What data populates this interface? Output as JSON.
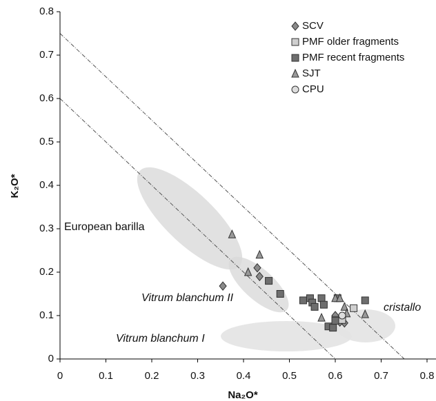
{
  "chart_data": {
    "type": "scatter",
    "xlabel": "Na₂O*",
    "ylabel": "K₂O*",
    "xlim": [
      0,
      0.8
    ],
    "ylim": [
      0,
      0.8
    ],
    "xticks": [
      0,
      0.1,
      0.2,
      0.3,
      0.4,
      0.5,
      0.6,
      0.7,
      0.8
    ],
    "yticks": [
      0,
      0.1,
      0.2,
      0.3,
      0.4,
      0.5,
      0.6,
      0.7,
      0.8
    ],
    "legend": "upper right",
    "annotations": [
      "European barilla",
      "Vitrum blanchum II",
      "Vitrum blanchum I",
      "cristallo"
    ],
    "series": [
      {
        "name": "SCV",
        "color": "#8a8a8a",
        "marker": "diamond",
        "x": [
          0.355,
          0.43,
          0.435,
          0.6,
          0.61,
          0.62,
          0.615
        ],
        "values": [
          0.168,
          0.21,
          0.19,
          0.1,
          0.085,
          0.083,
          0.09
        ]
      },
      {
        "name": "PMF older fragments",
        "color": "#cfcfcf",
        "marker": "square",
        "x": [
          0.64,
          0.615,
          0.6
        ],
        "values": [
          0.117,
          0.09,
          0.09
        ]
      },
      {
        "name": "PMF recent fragments",
        "color": "#6e6e6e",
        "marker": "square",
        "x": [
          0.455,
          0.48,
          0.53,
          0.545,
          0.55,
          0.555,
          0.57,
          0.575,
          0.585,
          0.595,
          0.6,
          0.605,
          0.665
        ],
        "values": [
          0.18,
          0.15,
          0.135,
          0.14,
          0.13,
          0.12,
          0.14,
          0.125,
          0.075,
          0.072,
          0.088,
          0.14,
          0.135
        ]
      },
      {
        "name": "SJT",
        "color": "#999999",
        "marker": "triangle",
        "x": [
          0.375,
          0.41,
          0.435,
          0.57,
          0.6,
          0.61,
          0.62,
          0.625,
          0.665
        ],
        "values": [
          0.287,
          0.2,
          0.24,
          0.095,
          0.14,
          0.14,
          0.12,
          0.105,
          0.103
        ]
      },
      {
        "name": "CPU",
        "color": "#dddddd",
        "marker": "circle",
        "x": [
          0.615
        ],
        "values": [
          0.1
        ]
      }
    ]
  }
}
